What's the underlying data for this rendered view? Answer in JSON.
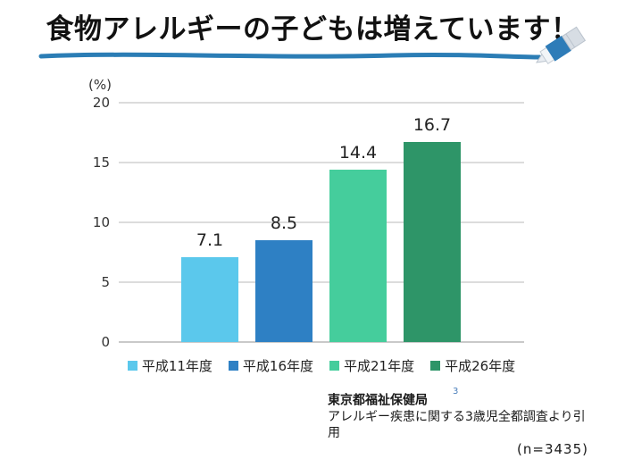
{
  "slide": {
    "title": "食物アレルギーの子どもは増えています！"
  },
  "chart_data": {
    "type": "bar",
    "title": "食物アレルギーの子どもは増えています！",
    "unit_label": "(%)",
    "categories": [
      "平成11年度",
      "平成16年度",
      "平成21年度",
      "平成26年度"
    ],
    "values": [
      7.1,
      8.5,
      14.4,
      16.7
    ],
    "value_labels": [
      "7.1",
      "8.5",
      "14.4",
      "16.7"
    ],
    "colors": [
      "#5bc8ec",
      "#2e80c4",
      "#45cd9c",
      "#2e9568"
    ],
    "ylim": [
      0,
      20
    ],
    "yticks": [
      0,
      5,
      10,
      15,
      20
    ],
    "grid": true,
    "gridline_color": "#dcdcdc",
    "legend_position": "bottom"
  },
  "decoration": {
    "underline_color": "#2b7db5",
    "pen_body_color": "#2e7cb8",
    "pen_cap_color": "#d7dde4"
  },
  "footer": {
    "source_line1": "東京都福祉保健局",
    "superscript_note": "3",
    "source_line2": "アレルギー疾患に関する3歳児全都調査より引用",
    "sample_size": "(n=3435)"
  }
}
